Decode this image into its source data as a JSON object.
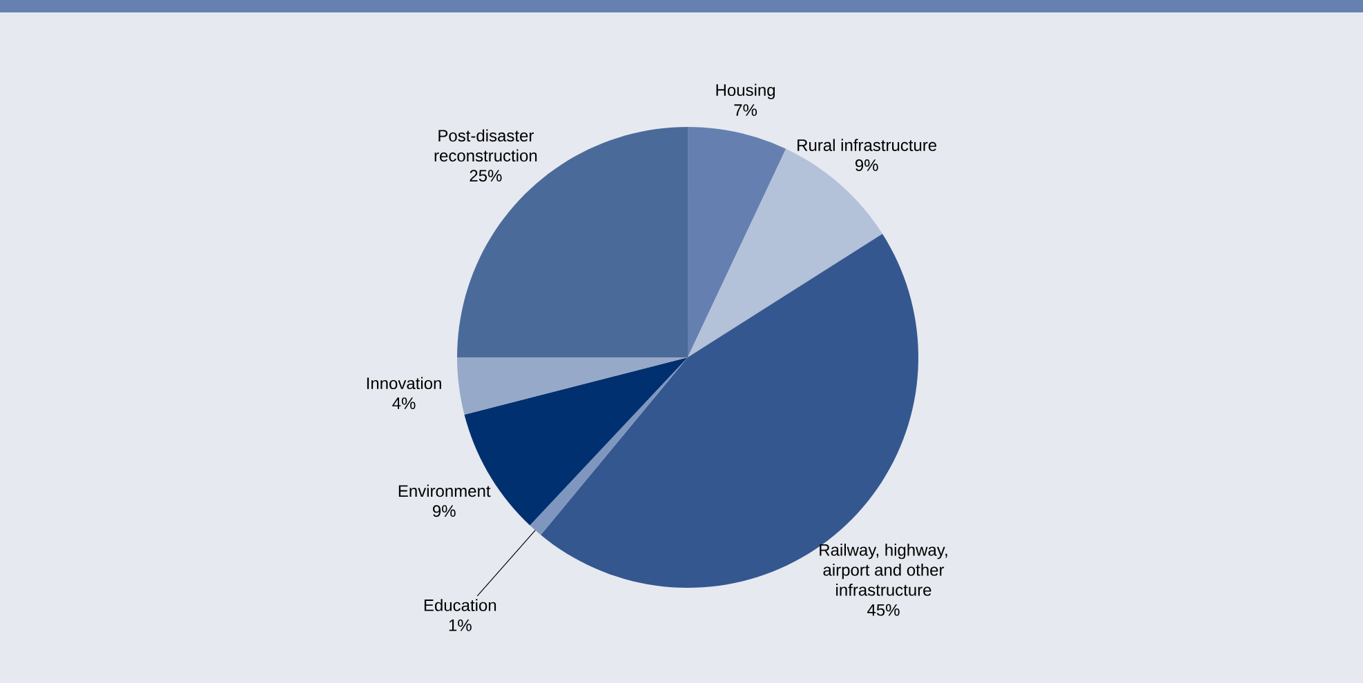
{
  "chart_data": {
    "type": "pie",
    "categories": [
      "Housing",
      "Rural infrastructure",
      "Railway, highway, airport and other infrastructure",
      "Education",
      "Environment",
      "Innovation",
      "Post-disaster reconstruction"
    ],
    "values": [
      7,
      9,
      45,
      1,
      9,
      4,
      25
    ],
    "value_labels": [
      "7%",
      "9%",
      "45%",
      "1%",
      "9%",
      "4%",
      "25%"
    ],
    "colors": [
      "#6580b0",
      "#b3c1d9",
      "#34578f",
      "#7f97bf",
      "#003070",
      "#97a9c8",
      "#4a6a9a"
    ]
  }
}
